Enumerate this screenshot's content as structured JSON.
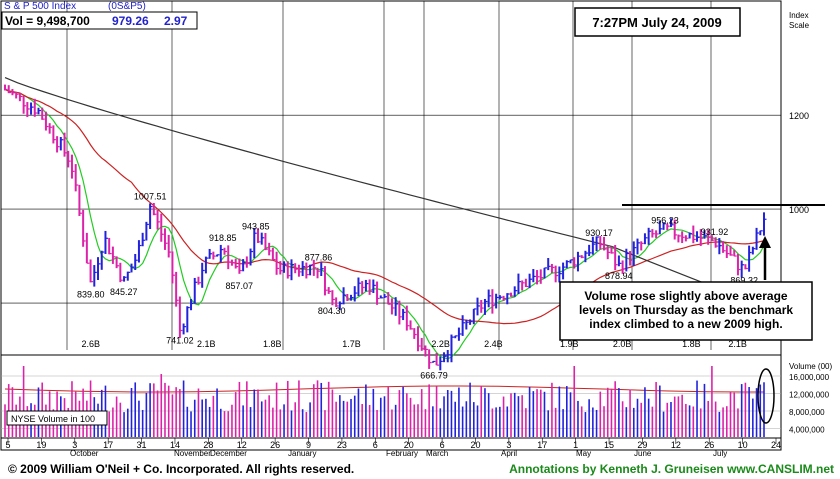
{
  "header": {
    "title": "S & P 500 Index",
    "symbol": "(0S&P5)",
    "vol_label": "Vol = 9,498,700",
    "price": "979.26",
    "change": "2.97"
  },
  "timestamp": "7:27PM July 24, 2009",
  "scale_label": "Index Scale",
  "volume_axis_label": "Volume (00)",
  "nyse_label": "NYSE Volume in 100",
  "annotation": "Volume rose slightly above average levels on Thursday as the benchmark index climbed to a new 2009 high.",
  "footer": {
    "copyright": "© 2009 William O'Neil + Co. Incorporated. All rights reserved.",
    "credit": "Annotations by Kenneth J. Gruneisen www.CANSLIM.net"
  },
  "colors": {
    "up_bar": "#2222dd",
    "down_bar": "#dd22aa",
    "ma50": "#22cc22",
    "ma200": "#cc2222",
    "ma_long": "#333333",
    "credit_text": "#1a8a1a",
    "header_text": "#2222cc"
  },
  "chart_data": {
    "type": "line",
    "price_axis": {
      "ticks": [
        800,
        1000,
        1200
      ],
      "ylim": [
        700,
        1360
      ]
    },
    "volume_axis": {
      "ticks": [
        "16,000,000",
        "12,000,000",
        "8,000,000",
        "4,000,000"
      ],
      "ylim": [
        0,
        20000000
      ]
    },
    "x_ticks": [
      "5",
      "19",
      "3",
      "17",
      "31",
      "14",
      "28",
      "12",
      "26",
      "9",
      "23",
      "6",
      "20",
      "6",
      "20",
      "3",
      "17",
      "1",
      "15",
      "29",
      "12",
      "26",
      "10",
      "24"
    ],
    "month_labels": [
      "October",
      "November",
      "December",
      "January",
      "February",
      "March",
      "April",
      "May",
      "June",
      "July"
    ],
    "price_series": [
      {
        "x": 0,
        "y": 1255
      },
      {
        "x": 1,
        "y": 1210
      },
      {
        "x": 2,
        "y": 1100
      },
      {
        "x": 2.6,
        "y": 840
      },
      {
        "x": 3,
        "y": 940
      },
      {
        "x": 3.6,
        "y": 845
      },
      {
        "x": 4,
        "y": 900
      },
      {
        "x": 4.4,
        "y": 1008
      },
      {
        "x": 5,
        "y": 900
      },
      {
        "x": 5.3,
        "y": 741
      },
      {
        "x": 6,
        "y": 880
      },
      {
        "x": 6.6,
        "y": 919
      },
      {
        "x": 7.1,
        "y": 857
      },
      {
        "x": 7.6,
        "y": 944
      },
      {
        "x": 8.3,
        "y": 870
      },
      {
        "x": 9.5,
        "y": 878
      },
      {
        "x": 9.9,
        "y": 804
      },
      {
        "x": 11,
        "y": 840
      },
      {
        "x": 12.2,
        "y": 760
      },
      {
        "x": 13,
        "y": 667
      },
      {
        "x": 14.5,
        "y": 800
      },
      {
        "x": 16,
        "y": 850
      },
      {
        "x": 17,
        "y": 880
      },
      {
        "x": 18,
        "y": 930
      },
      {
        "x": 18.6,
        "y": 879
      },
      {
        "x": 19.5,
        "y": 940
      },
      {
        "x": 20,
        "y": 956
      },
      {
        "x": 21.5,
        "y": 932
      },
      {
        "x": 22.4,
        "y": 869
      },
      {
        "x": 23,
        "y": 979
      }
    ],
    "annotations_text": [
      "839.80",
      "845.27",
      "1007.51",
      "741.02",
      "918.85",
      "857.07",
      "943.85",
      "877.86",
      "804.30",
      "666.79",
      "930.17",
      "878.94",
      "956.23",
      "931.92",
      "869.32"
    ],
    "volume_labels": [
      "2.6B",
      "2.1B",
      "1.8B",
      "1.7B",
      "2.2B",
      "2.4B",
      "1.9B",
      "2.0B",
      "1.8B",
      "2.1B"
    ],
    "series": [
      {
        "name": "",
        "role": "50-day moving average",
        "color": "#22cc22"
      },
      {
        "name": "",
        "role": "200-day moving average",
        "color": "#cc2222"
      },
      {
        "name": "",
        "role": "long-term moving average",
        "color": "#333333"
      }
    ]
  }
}
